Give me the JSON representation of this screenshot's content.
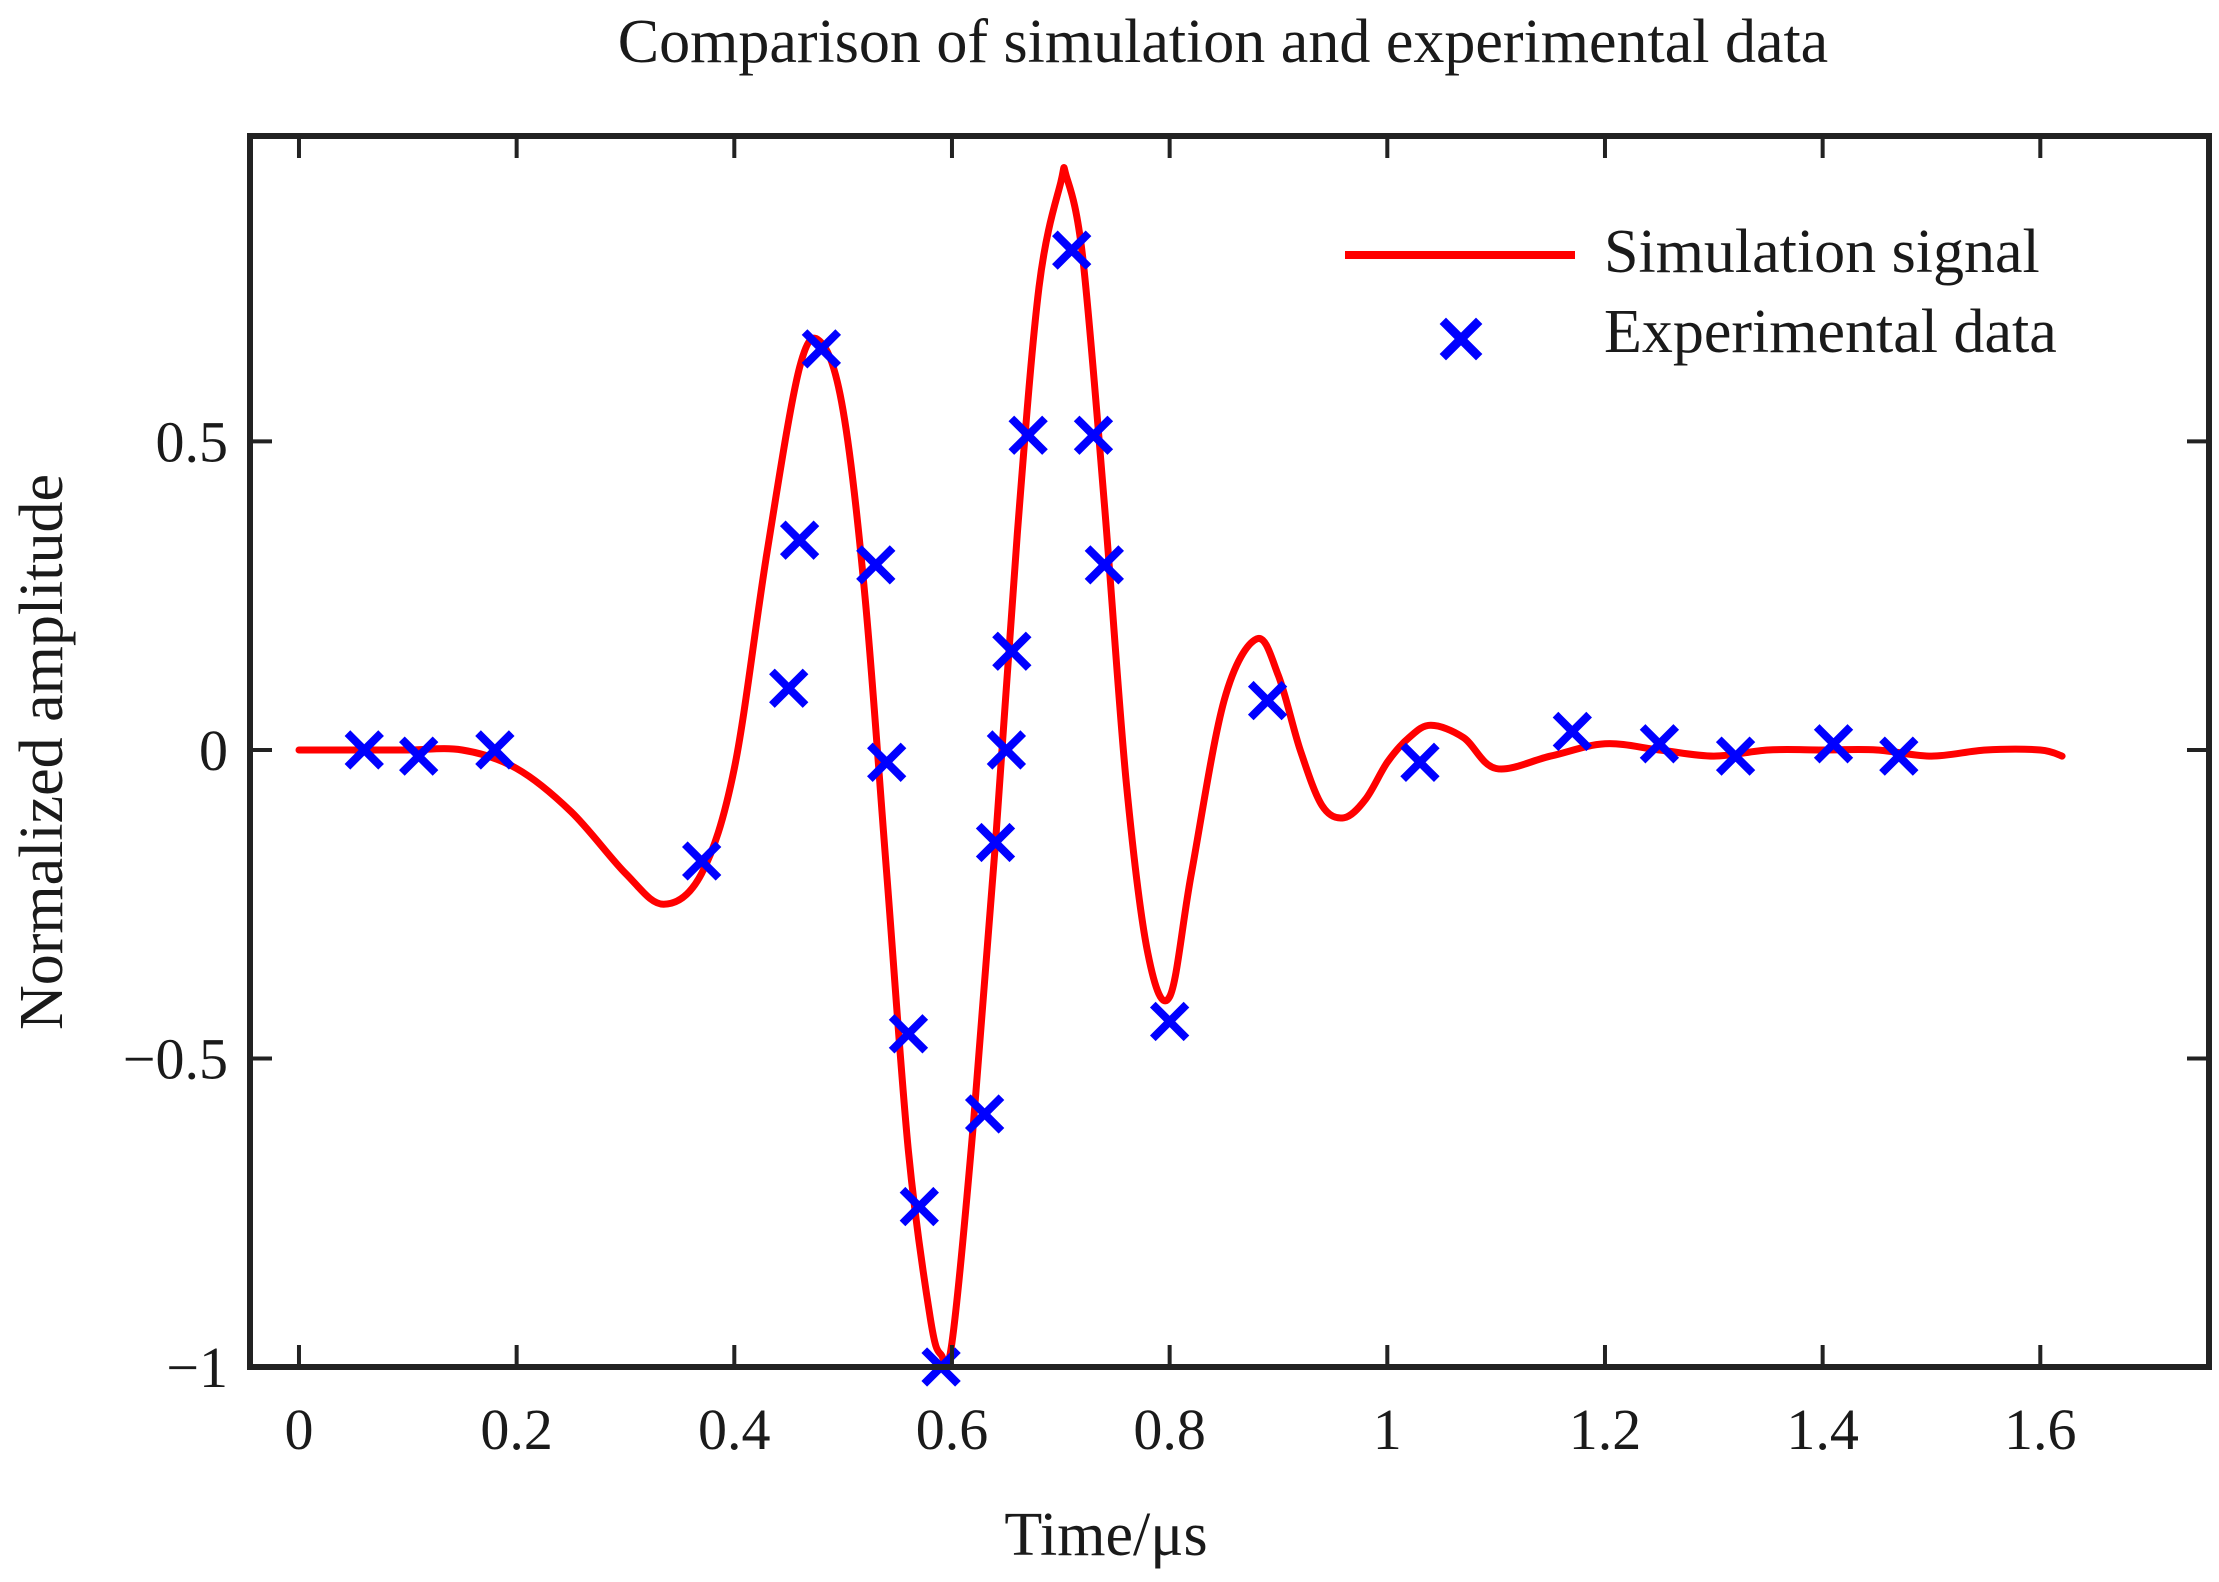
{
  "chart_data": {
    "type": "line+scatter",
    "title": "Comparison of simulation and experimental data",
    "xlabel": "Time/μs",
    "ylabel": "Normalized amplitude",
    "xlim": [
      -0.045,
      1.755
    ],
    "ylim": [
      -1.0,
      0.995
    ],
    "xticks": [
      0,
      0.2,
      0.4,
      0.6,
      0.8,
      1,
      1.2,
      1.4,
      1.6
    ],
    "xtick_labels": [
      "0",
      "0.2",
      "0.4",
      "0.6",
      "0.8",
      "1",
      "1.2",
      "1.4",
      "1.6"
    ],
    "yticks": [
      -1,
      -0.5,
      0,
      0.5
    ],
    "ytick_labels": [
      "−1",
      "−0.5",
      "0",
      "0.5"
    ],
    "grid": false,
    "legend_position": "top-right",
    "colors": {
      "simulation": "#ff0000",
      "experimental": "#0000ff",
      "axes": "#222222"
    },
    "series": [
      {
        "name": "Simulation signal",
        "style": "line",
        "x": [
          0,
          0.05,
          0.1,
          0.15,
          0.2,
          0.25,
          0.3,
          0.335,
          0.37,
          0.4,
          0.43,
          0.46,
          0.48,
          0.5,
          0.52,
          0.54,
          0.56,
          0.58,
          0.59,
          0.6,
          0.62,
          0.64,
          0.66,
          0.68,
          0.7,
          0.705,
          0.72,
          0.74,
          0.76,
          0.78,
          0.8,
          0.82,
          0.85,
          0.88,
          0.9,
          0.92,
          0.94,
          0.96,
          0.98,
          1.0,
          1.02,
          1.04,
          1.07,
          1.1,
          1.15,
          1.2,
          1.25,
          1.3,
          1.35,
          1.4,
          1.45,
          1.5,
          1.55,
          1.6,
          1.62
        ],
        "y": [
          0.0,
          0.0,
          0.0,
          0.0,
          -0.03,
          -0.1,
          -0.2,
          -0.25,
          -0.2,
          -0.03,
          0.32,
          0.62,
          0.66,
          0.55,
          0.25,
          -0.2,
          -0.65,
          -0.92,
          -0.98,
          -0.96,
          -0.6,
          -0.15,
          0.35,
          0.75,
          0.92,
          0.93,
          0.8,
          0.4,
          -0.05,
          -0.33,
          -0.4,
          -0.2,
          0.08,
          0.18,
          0.12,
          0.0,
          -0.09,
          -0.11,
          -0.08,
          -0.02,
          0.02,
          0.04,
          0.02,
          -0.03,
          -0.01,
          0.01,
          0.0,
          -0.01,
          0.0,
          0.0,
          0.0,
          -0.01,
          0.0,
          0.0,
          -0.01
        ]
      },
      {
        "name": "Experimental data",
        "style": "marker-x",
        "x": [
          0.06,
          0.11,
          0.18,
          0.37,
          0.45,
          0.46,
          0.48,
          0.53,
          0.54,
          0.56,
          0.57,
          0.59,
          0.63,
          0.64,
          0.65,
          0.655,
          0.67,
          0.71,
          0.73,
          0.74,
          0.8,
          0.89,
          1.03,
          1.17,
          1.25,
          1.32,
          1.41,
          1.47
        ],
        "y": [
          0.0,
          -0.01,
          0.0,
          -0.18,
          0.1,
          0.34,
          0.65,
          0.3,
          -0.02,
          -0.46,
          -0.74,
          -1.0,
          -0.59,
          -0.15,
          0.0,
          0.16,
          0.51,
          0.81,
          0.51,
          0.3,
          -0.44,
          0.08,
          -0.02,
          0.03,
          0.01,
          -0.01,
          0.01,
          -0.01
        ]
      }
    ]
  }
}
